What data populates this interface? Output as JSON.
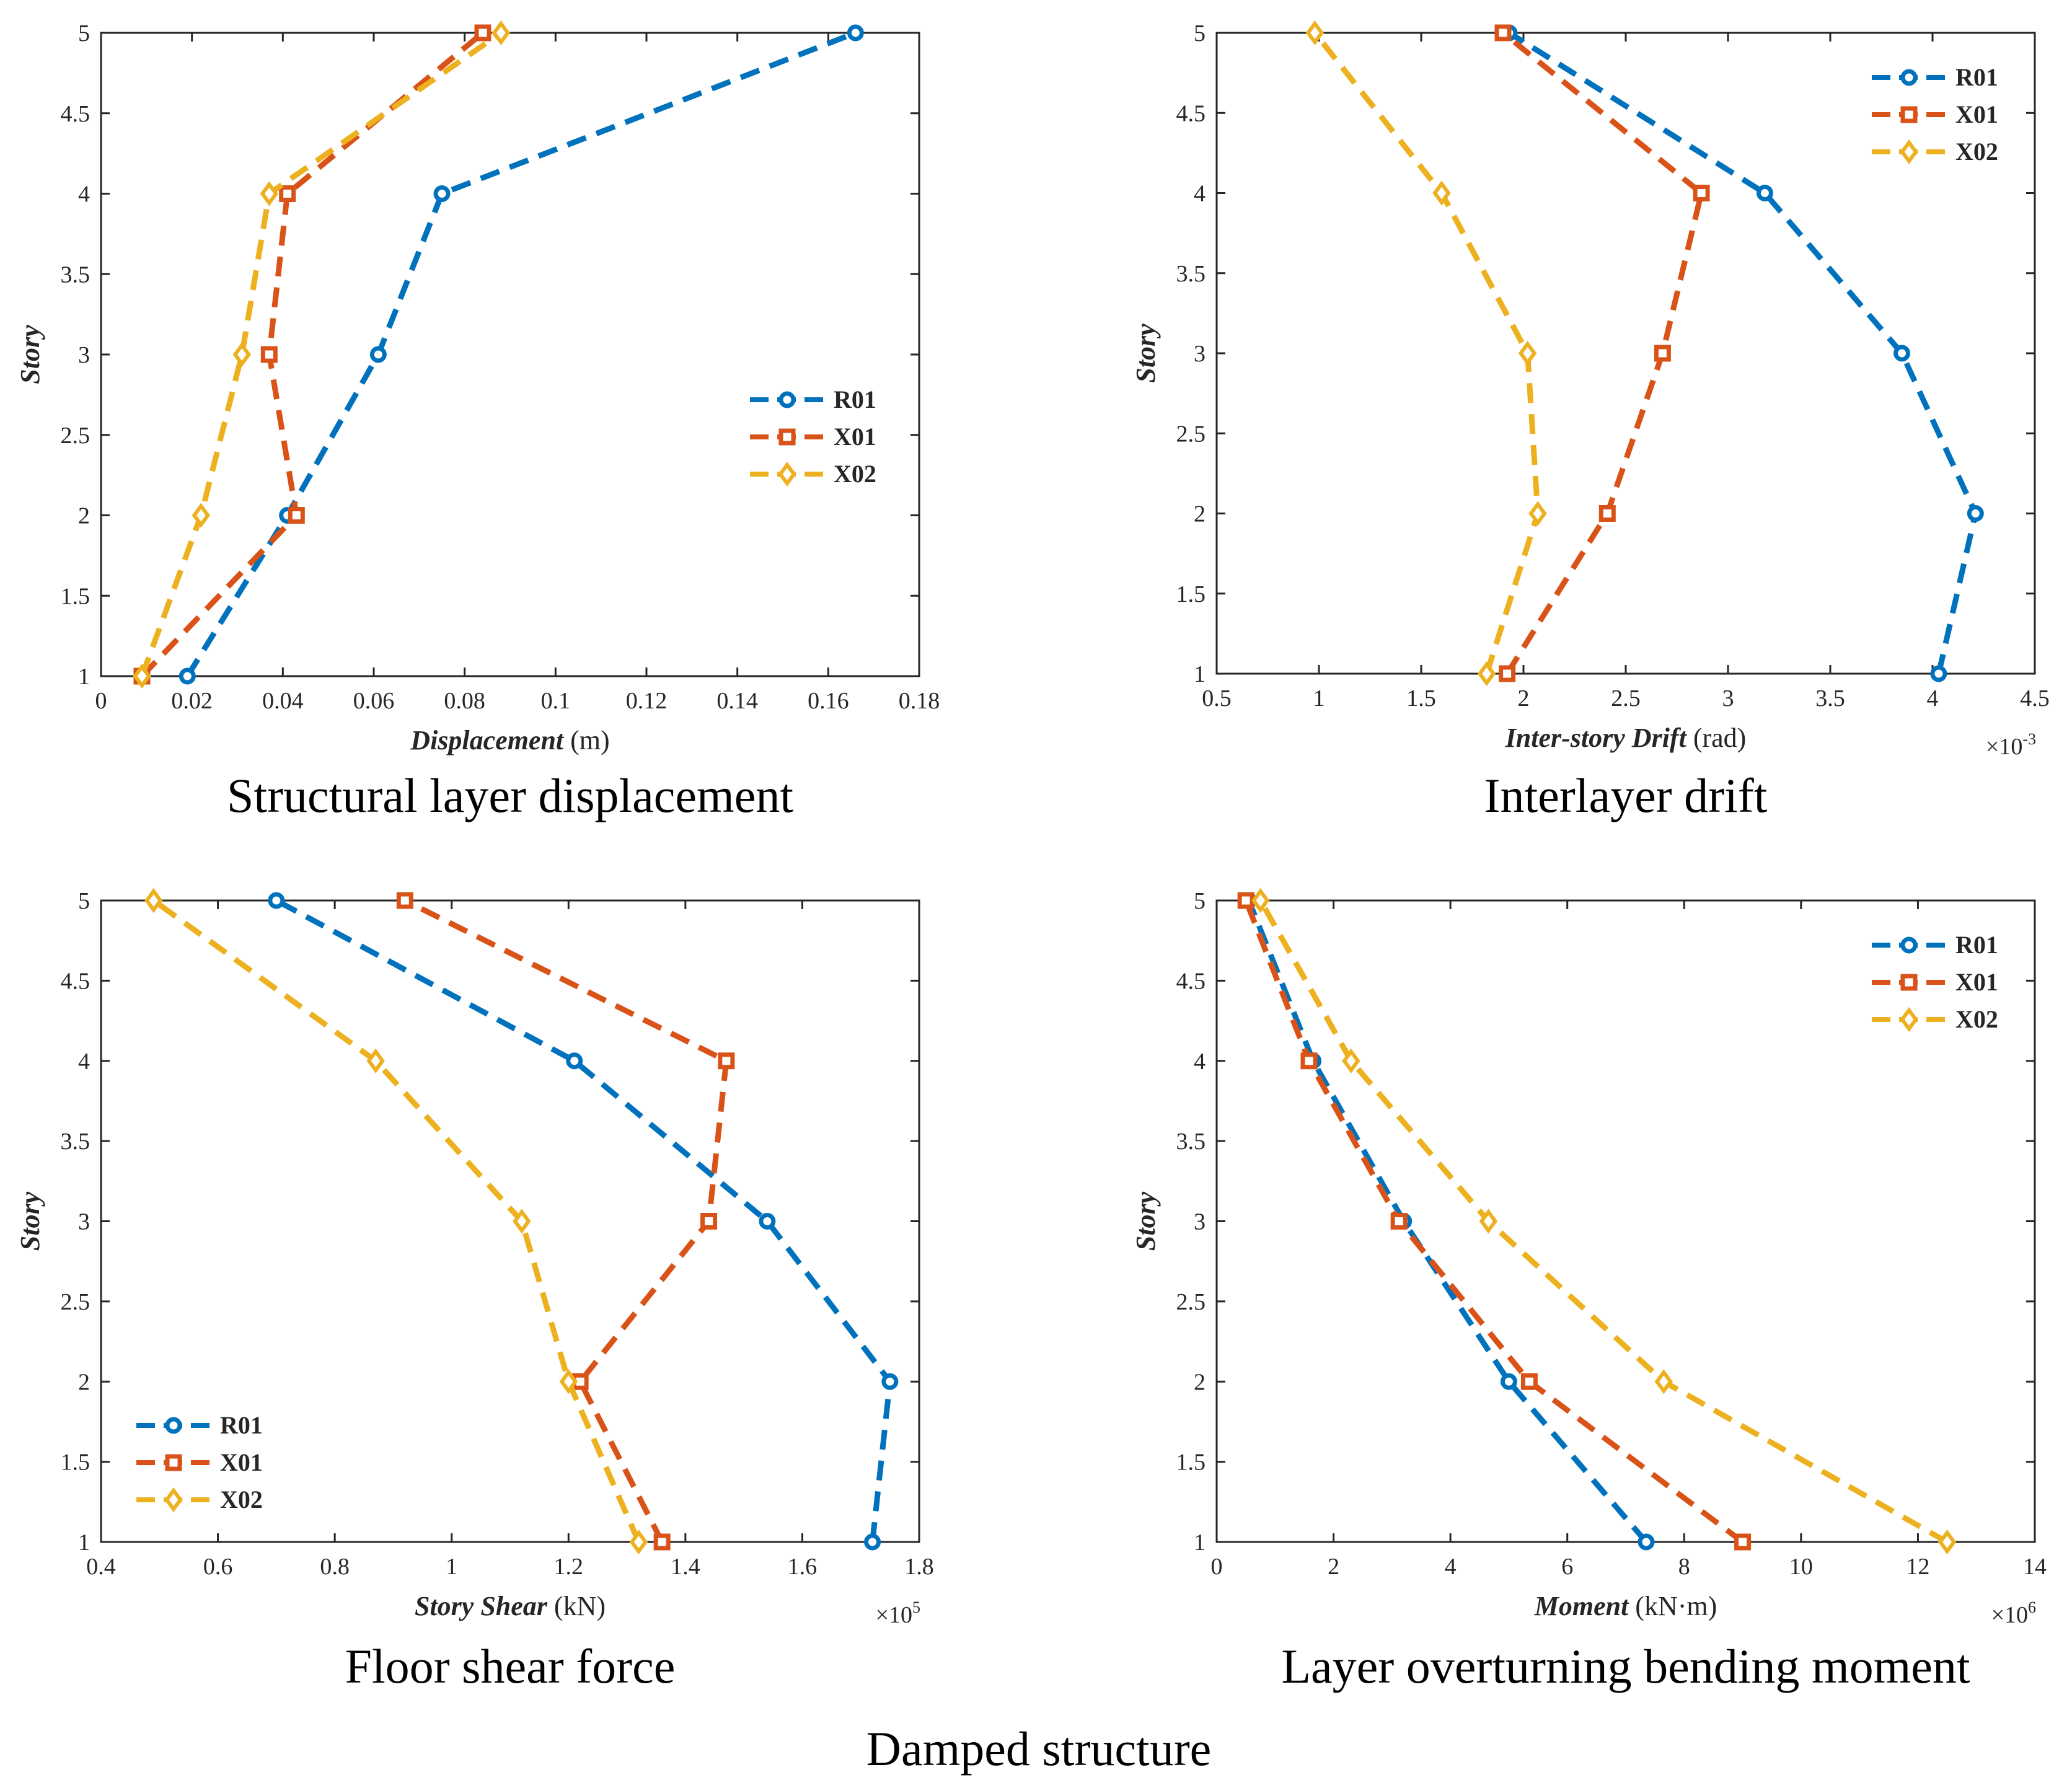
{
  "figure_caption": "Damped structure",
  "colors": {
    "R01": "#0072BD",
    "X01": "#D95319",
    "X02": "#EDB120"
  },
  "chart_data": [
    {
      "type": "line",
      "caption": "Structural layer displacement",
      "xlabel_bold": "Displacement",
      "xlabel_unit": " (m)",
      "ylabel": "Story",
      "xlim": [
        0,
        0.18
      ],
      "ylim": [
        1,
        5
      ],
      "xticks": [
        "0",
        "0.02",
        "0.04",
        "0.06",
        "0.08",
        "0.1",
        "0.12",
        "0.14",
        "0.16",
        "0.18"
      ],
      "yticks": [
        "1",
        "1.5",
        "2",
        "2.5",
        "3",
        "3.5",
        "4",
        "4.5",
        "5"
      ],
      "multiplier_base": "",
      "multiplier_exp": "",
      "legend_position": "center-right",
      "series": [
        {
          "name": "R01",
          "marker": "circle",
          "x": [
            0.019,
            0.041,
            0.061,
            0.075,
            0.166
          ],
          "y": [
            1,
            2,
            3,
            4,
            5
          ]
        },
        {
          "name": "X01",
          "marker": "square",
          "x": [
            0.009,
            0.043,
            0.037,
            0.041,
            0.084
          ],
          "y": [
            1,
            2,
            3,
            4,
            5
          ]
        },
        {
          "name": "X02",
          "marker": "diamond",
          "x": [
            0.009,
            0.022,
            0.031,
            0.037,
            0.088
          ],
          "y": [
            1,
            2,
            3,
            4,
            5
          ]
        }
      ]
    },
    {
      "type": "line",
      "caption": "Interlayer drift",
      "xlabel_bold": "Inter-story Drift",
      "xlabel_unit": " (rad)",
      "ylabel": "Story",
      "xlim": [
        0.5,
        4.5
      ],
      "ylim": [
        1,
        5
      ],
      "xticks": [
        "0.5",
        "1",
        "1.5",
        "2",
        "2.5",
        "3",
        "3.5",
        "4",
        "4.5"
      ],
      "yticks": [
        "1",
        "1.5",
        "2",
        "2.5",
        "3",
        "3.5",
        "4",
        "4.5",
        "5"
      ],
      "multiplier_base": "×10",
      "multiplier_exp": "-3",
      "legend_position": "top-right",
      "series": [
        {
          "name": "R01",
          "marker": "circle",
          "x": [
            4.03,
            4.21,
            3.85,
            3.18,
            1.93
          ],
          "y": [
            1,
            2,
            3,
            4,
            5
          ]
        },
        {
          "name": "X01",
          "marker": "square",
          "x": [
            1.92,
            2.41,
            2.68,
            2.87,
            1.9
          ],
          "y": [
            1,
            2,
            3,
            4,
            5
          ]
        },
        {
          "name": "X02",
          "marker": "diamond",
          "x": [
            1.82,
            2.07,
            2.02,
            1.6,
            0.98
          ],
          "y": [
            1,
            2,
            3,
            4,
            5
          ]
        }
      ]
    },
    {
      "type": "line",
      "caption": "Floor shear force",
      "xlabel_bold": "Story Shear",
      "xlabel_unit": " (kN)",
      "ylabel": "Story",
      "xlim": [
        0.4,
        1.8
      ],
      "ylim": [
        1,
        5
      ],
      "xticks": [
        "0.4",
        "0.6",
        "0.8",
        "1",
        "1.2",
        "1.4",
        "1.6",
        "1.8"
      ],
      "yticks": [
        "1",
        "1.5",
        "2",
        "2.5",
        "3",
        "3.5",
        "4",
        "4.5",
        "5"
      ],
      "multiplier_base": "×10",
      "multiplier_exp": "5",
      "legend_position": "bottom-left",
      "series": [
        {
          "name": "R01",
          "marker": "circle",
          "x": [
            1.72,
            1.75,
            1.54,
            1.21,
            0.7
          ],
          "y": [
            1,
            2,
            3,
            4,
            5
          ]
        },
        {
          "name": "X01",
          "marker": "square",
          "x": [
            1.36,
            1.22,
            1.44,
            1.47,
            0.92
          ],
          "y": [
            1,
            2,
            3,
            4,
            5
          ]
        },
        {
          "name": "X02",
          "marker": "diamond",
          "x": [
            1.32,
            1.2,
            1.12,
            0.87,
            0.49
          ],
          "y": [
            1,
            2,
            3,
            4,
            5
          ]
        }
      ]
    },
    {
      "type": "line",
      "caption": "Layer overturning bending moment",
      "xlabel_bold": "Moment",
      "xlabel_unit": " (kN·m)",
      "ylabel": "Story",
      "xlim": [
        0,
        14
      ],
      "ylim": [
        1,
        5
      ],
      "xticks": [
        "0",
        "2",
        "4",
        "6",
        "8",
        "10",
        "12",
        "14"
      ],
      "yticks": [
        "1",
        "1.5",
        "2",
        "2.5",
        "3",
        "3.5",
        "4",
        "4.5",
        "5"
      ],
      "multiplier_base": "×10",
      "multiplier_exp": "6",
      "legend_position": "top-right",
      "series": [
        {
          "name": "R01",
          "marker": "circle",
          "x": [
            7.35,
            5.0,
            3.2,
            1.65,
            0.55
          ],
          "y": [
            1,
            2,
            3,
            4,
            5
          ]
        },
        {
          "name": "X01",
          "marker": "square",
          "x": [
            9.0,
            5.35,
            3.12,
            1.58,
            0.5
          ],
          "y": [
            1,
            2,
            3,
            4,
            5
          ]
        },
        {
          "name": "X02",
          "marker": "diamond",
          "x": [
            12.5,
            7.65,
            4.65,
            2.3,
            0.75
          ],
          "y": [
            1,
            2,
            3,
            4,
            5
          ]
        }
      ]
    }
  ]
}
